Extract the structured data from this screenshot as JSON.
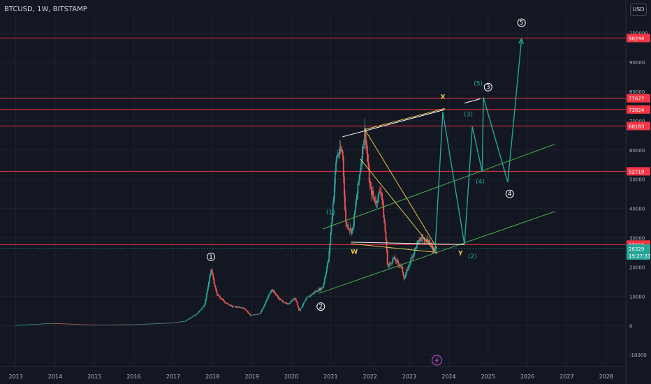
{
  "header": {
    "symbol": "BTCUSD, 1W, BITSTAMP",
    "currency": "USD"
  },
  "colors": {
    "background": "#131722",
    "up": "#26a69a",
    "down": "#ef5350",
    "level": "#f23645",
    "channel": "#4caf50",
    "wedge": "#e8c547",
    "projection": "#26a69a"
  },
  "chart_data": {
    "type": "candlestick",
    "title": "BTCUSD, 1W, BITSTAMP",
    "x_ticks": [
      "2013",
      "2014",
      "2015",
      "2016",
      "2017",
      "2018",
      "2019",
      "2020",
      "2021",
      "2022",
      "2023",
      "2024",
      "2025",
      "2026",
      "2027",
      "2028"
    ],
    "y_ticks": [
      -10000,
      0,
      10000,
      20000,
      30000,
      40000,
      50000,
      60000,
      70000,
      80000,
      90000,
      100000
    ],
    "ylim": [
      -14000,
      106000
    ],
    "xlim": [
      2012.6,
      2028.5
    ],
    "price_path": [
      [
        2013.0,
        100
      ],
      [
        2013.9,
        800
      ],
      [
        2014.5,
        500
      ],
      [
        2015.0,
        250
      ],
      [
        2016.0,
        400
      ],
      [
        2016.9,
        900
      ],
      [
        2017.3,
        1500
      ],
      [
        2017.6,
        4000
      ],
      [
        2017.8,
        7000
      ],
      [
        2017.96,
        19500
      ],
      [
        2018.1,
        11000
      ],
      [
        2018.3,
        8000
      ],
      [
        2018.5,
        6500
      ],
      [
        2018.8,
        6000
      ],
      [
        2018.96,
        3500
      ],
      [
        2019.2,
        4000
      ],
      [
        2019.35,
        8000
      ],
      [
        2019.5,
        12500
      ],
      [
        2019.7,
        9000
      ],
      [
        2019.9,
        7200
      ],
      [
        2020.1,
        9500
      ],
      [
        2020.2,
        5000
      ],
      [
        2020.4,
        9500
      ],
      [
        2020.6,
        11500
      ],
      [
        2020.8,
        13000
      ],
      [
        2020.95,
        23000
      ],
      [
        2021.05,
        40000
      ],
      [
        2021.15,
        58000
      ],
      [
        2021.3,
        60000
      ],
      [
        2021.38,
        35000
      ],
      [
        2021.55,
        32000
      ],
      [
        2021.7,
        48000
      ],
      [
        2021.87,
        67000
      ],
      [
        2022.0,
        47000
      ],
      [
        2022.15,
        42000
      ],
      [
        2022.28,
        47000
      ],
      [
        2022.4,
        30000
      ],
      [
        2022.45,
        20000
      ],
      [
        2022.6,
        23000
      ],
      [
        2022.8,
        20000
      ],
      [
        2022.87,
        16000
      ],
      [
        2023.05,
        23000
      ],
      [
        2023.2,
        28000
      ],
      [
        2023.3,
        30000
      ],
      [
        2023.5,
        29000
      ],
      [
        2023.6,
        26000
      ],
      [
        2023.7,
        27000
      ]
    ],
    "horizontal_levels": [
      {
        "label": "98244",
        "value": 98244
      },
      {
        "label": "77677",
        "value": 77677
      },
      {
        "label": "73824",
        "value": 73824
      },
      {
        "label": "68183",
        "value": 68183
      },
      {
        "label": "52719",
        "value": 52719
      },
      {
        "label": "27686",
        "value": 27686
      }
    ],
    "last_price": {
      "value": "26329",
      "countdown": "19:27:33",
      "y": 26329
    },
    "projection_path": [
      [
        2023.65,
        25000
      ],
      [
        2023.85,
        73000
      ],
      [
        2024.4,
        27686
      ],
      [
        2024.6,
        68000
      ],
      [
        2024.85,
        52500
      ],
      [
        2024.88,
        78000
      ],
      [
        2025.5,
        49000
      ],
      [
        2025.85,
        98000
      ]
    ],
    "channel_lines": [
      {
        "from": [
          2020.7,
          11000
        ],
        "to": [
          2026.7,
          39000
        ]
      },
      {
        "from": [
          2020.8,
          33000
        ],
        "to": [
          2026.7,
          62000
        ]
      }
    ],
    "wedge_lines": [
      {
        "from": [
          2021.3,
          64500
        ],
        "to": [
          2023.9,
          73800
        ],
        "color": "#ffffff"
      },
      {
        "from": [
          2021.87,
          67000
        ],
        "to": [
          2023.9,
          74200
        ],
        "color": "#e8c547"
      },
      {
        "from": [
          2021.87,
          67000
        ],
        "to": [
          2023.7,
          26500
        ],
        "color": "#e8c547"
      },
      {
        "from": [
          2021.75,
          57000
        ],
        "to": [
          2023.7,
          24500
        ],
        "color": "#e8c547"
      },
      {
        "from": [
          2021.52,
          28500
        ],
        "to": [
          2024.4,
          27686
        ],
        "color": "#ffffff"
      },
      {
        "from": [
          2021.52,
          28000
        ],
        "to": [
          2023.7,
          25000
        ],
        "color": "#e8c547"
      },
      {
        "from": [
          2024.4,
          76000
        ],
        "to": [
          2024.8,
          77500
        ],
        "color": "#ffffff"
      }
    ],
    "wave_labels": [
      {
        "text": "1",
        "x": 2017.96,
        "y": 23500,
        "style": "circle"
      },
      {
        "text": "2",
        "x": 2020.75,
        "y": 6500,
        "style": "circle"
      },
      {
        "text": "3",
        "x": 2025.0,
        "y": 81500,
        "style": "circle"
      },
      {
        "text": "4",
        "x": 2025.55,
        "y": 45000,
        "style": "circle"
      },
      {
        "text": "5",
        "x": 2025.85,
        "y": 103500,
        "style": "circle"
      },
      {
        "text": "(1)",
        "x": 2021.0,
        "y": 38000,
        "style": "teal"
      },
      {
        "text": "(2)",
        "x": 2024.6,
        "y": 23000,
        "style": "teal"
      },
      {
        "text": "(3)",
        "x": 2024.5,
        "y": 71500,
        "style": "teal"
      },
      {
        "text": "(4)",
        "x": 2024.8,
        "y": 48500,
        "style": "teal"
      },
      {
        "text": "(5)",
        "x": 2024.75,
        "y": 82000,
        "style": "teal"
      },
      {
        "text": "W",
        "x": 2021.6,
        "y": 24500,
        "style": "yellow"
      },
      {
        "text": "X",
        "x": 2023.85,
        "y": 77500,
        "style": "yellow"
      },
      {
        "text": "Y",
        "x": 2024.3,
        "y": 24000,
        "style": "yellow"
      }
    ]
  }
}
